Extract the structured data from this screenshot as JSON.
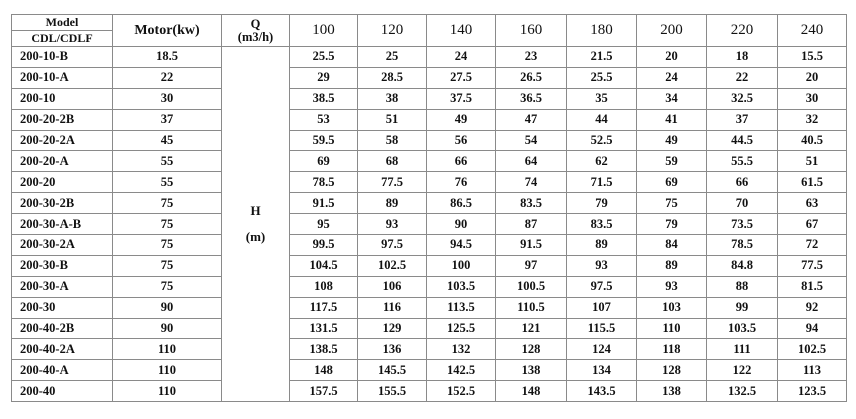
{
  "header": {
    "model_label": "Model",
    "model_sub_label": "CDL/CDLF",
    "motor_label": "Motor(kw)",
    "q_label": "Q",
    "q_unit": "(m3/h)",
    "h_label": "H",
    "h_unit": "(m)",
    "flows": [
      "100",
      "120",
      "140",
      "160",
      "180",
      "200",
      "220",
      "240"
    ]
  },
  "rows": [
    {
      "model": "200-10-B",
      "motor": "18.5",
      "heads": [
        "25.5",
        "25",
        "24",
        "23",
        "21.5",
        "20",
        "18",
        "15.5"
      ]
    },
    {
      "model": "200-10-A",
      "motor": "22",
      "heads": [
        "29",
        "28.5",
        "27.5",
        "26.5",
        "25.5",
        "24",
        "22",
        "20"
      ]
    },
    {
      "model": "200-10",
      "motor": "30",
      "heads": [
        "38.5",
        "38",
        "37.5",
        "36.5",
        "35",
        "34",
        "32.5",
        "30"
      ]
    },
    {
      "model": "200-20-2B",
      "motor": "37",
      "heads": [
        "53",
        "51",
        "49",
        "47",
        "44",
        "41",
        "37",
        "32"
      ]
    },
    {
      "model": "200-20-2A",
      "motor": "45",
      "heads": [
        "59.5",
        "58",
        "56",
        "54",
        "52.5",
        "49",
        "44.5",
        "40.5"
      ]
    },
    {
      "model": "200-20-A",
      "motor": "55",
      "heads": [
        "69",
        "68",
        "66",
        "64",
        "62",
        "59",
        "55.5",
        "51"
      ]
    },
    {
      "model": "200-20",
      "motor": "55",
      "heads": [
        "78.5",
        "77.5",
        "76",
        "74",
        "71.5",
        "69",
        "66",
        "61.5"
      ]
    },
    {
      "model": "200-30-2B",
      "motor": "75",
      "heads": [
        "91.5",
        "89",
        "86.5",
        "83.5",
        "79",
        "75",
        "70",
        "63"
      ]
    },
    {
      "model": "200-30-A-B",
      "motor": "75",
      "heads": [
        "95",
        "93",
        "90",
        "87",
        "83.5",
        "79",
        "73.5",
        "67"
      ]
    },
    {
      "model": "200-30-2A",
      "motor": "75",
      "heads": [
        "99.5",
        "97.5",
        "94.5",
        "91.5",
        "89",
        "84",
        "78.5",
        "72"
      ]
    },
    {
      "model": "200-30-B",
      "motor": "75",
      "heads": [
        "104.5",
        "102.5",
        "100",
        "97",
        "93",
        "89",
        "84.8",
        "77.5"
      ]
    },
    {
      "model": "200-30-A",
      "motor": "75",
      "heads": [
        "108",
        "106",
        "103.5",
        "100.5",
        "97.5",
        "93",
        "88",
        "81.5"
      ]
    },
    {
      "model": "200-30",
      "motor": "90",
      "heads": [
        "117.5",
        "116",
        "113.5",
        "110.5",
        "107",
        "103",
        "99",
        "92"
      ]
    },
    {
      "model": "200-40-2B",
      "motor": "90",
      "heads": [
        "131.5",
        "129",
        "125.5",
        "121",
        "115.5",
        "110",
        "103.5",
        "94"
      ]
    },
    {
      "model": "200-40-2A",
      "motor": "110",
      "heads": [
        "138.5",
        "136",
        "132",
        "128",
        "124",
        "118",
        "111",
        "102.5"
      ]
    },
    {
      "model": "200-40-A",
      "motor": "110",
      "heads": [
        "148",
        "145.5",
        "142.5",
        "138",
        "134",
        "128",
        "122",
        "113"
      ]
    },
    {
      "model": "200-40",
      "motor": "110",
      "heads": [
        "157.5",
        "155.5",
        "152.5",
        "148",
        "143.5",
        "138",
        "132.5",
        "123.5"
      ]
    }
  ]
}
